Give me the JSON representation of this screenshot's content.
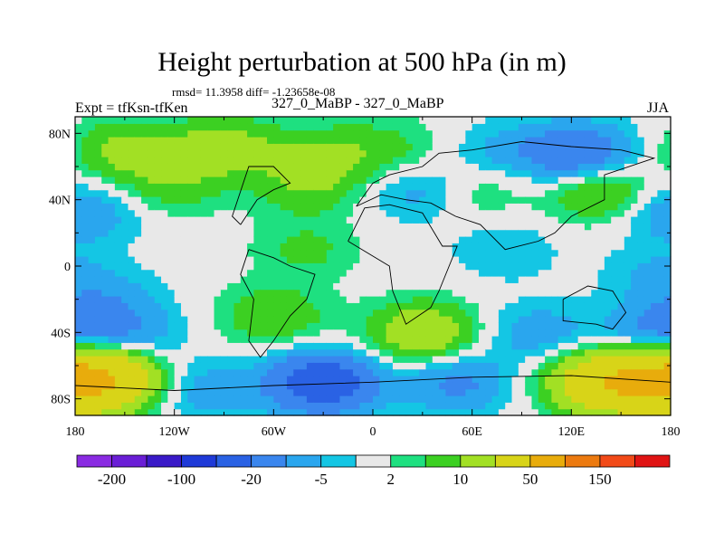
{
  "chart_data": {
    "type": "contour-map",
    "title": "Height perturbation at 500 hPa (in m)",
    "stats_text": "rmsd= 11.3958 diff= -1.23658e-08",
    "left_label": "Expt = tfKsn-tfKen",
    "center_label": "327_0_MaBP - 327_0_MaBP",
    "right_label": "JJA",
    "x_axis": {
      "range": [
        -180,
        180
      ],
      "ticks": [
        {
          "value": -180,
          "label": "180"
        },
        {
          "value": -120,
          "label": "120W"
        },
        {
          "value": -60,
          "label": "60W"
        },
        {
          "value": 0,
          "label": "0"
        },
        {
          "value": 60,
          "label": "60E"
        },
        {
          "value": 120,
          "label": "120E"
        },
        {
          "value": 180,
          "label": "180"
        }
      ]
    },
    "y_axis": {
      "range": [
        -90,
        90
      ],
      "ticks": [
        {
          "value": 80,
          "label": "80N"
        },
        {
          "value": 40,
          "label": "40N"
        },
        {
          "value": 0,
          "label": "0"
        },
        {
          "value": -40,
          "label": "40S"
        },
        {
          "value": -80,
          "label": "80S"
        }
      ]
    },
    "contour_levels": [
      -200,
      -150,
      -100,
      -50,
      -20,
      -10,
      -5,
      -2,
      2,
      5,
      10,
      20,
      50,
      100,
      150,
      200
    ],
    "colorbar": {
      "colors": [
        "#8a2be2",
        "#6a1ed6",
        "#3a1ac8",
        "#1f3ad8",
        "#2a62e4",
        "#3a86ee",
        "#2aa6ee",
        "#14c6e4",
        "#e8e8e8",
        "#1ee080",
        "#3cd022",
        "#a2e024",
        "#d8d418",
        "#e8ac0c",
        "#ec7a10",
        "#f24a18",
        "#e01414"
      ],
      "labels": [
        {
          "after_box": 1,
          "text": "-200"
        },
        {
          "after_box": 3,
          "text": "-100"
        },
        {
          "after_box": 5,
          "text": "-20"
        },
        {
          "after_box": 7,
          "text": "-5"
        },
        {
          "after_box": 9,
          "text": "2"
        },
        {
          "after_box": 11,
          "text": "10"
        },
        {
          "after_box": 13,
          "text": "50"
        },
        {
          "after_box": 15,
          "text": "150"
        }
      ]
    },
    "field": {
      "background_value": 0,
      "anomalies": [
        {
          "lon": -150,
          "lat": 70,
          "value": 12
        },
        {
          "lon": -90,
          "lat": 72,
          "value": 14
        },
        {
          "lon": -30,
          "lat": 66,
          "value": 10
        },
        {
          "lon": 10,
          "lat": 72,
          "value": 6
        },
        {
          "lon": -120,
          "lat": 50,
          "value": 8
        },
        {
          "lon": -40,
          "lat": 48,
          "value": 8
        },
        {
          "lon": 60,
          "lat": 45,
          "value": 6
        },
        {
          "lon": 140,
          "lat": 45,
          "value": 14
        },
        {
          "lon": 125,
          "lat": 68,
          "value": -18
        },
        {
          "lon": 80,
          "lat": 70,
          "value": -6
        },
        {
          "lon": 30,
          "lat": 45,
          "value": -8
        },
        {
          "lon": 170,
          "lat": 38,
          "value": -6
        },
        {
          "lon": -170,
          "lat": 30,
          "value": -6
        },
        {
          "lon": -40,
          "lat": 10,
          "value": 6
        },
        {
          "lon": 80,
          "lat": 10,
          "value": -5
        },
        {
          "lon": 170,
          "lat": -5,
          "value": -5
        },
        {
          "lon": -160,
          "lat": -18,
          "value": -6
        },
        {
          "lon": -150,
          "lat": -40,
          "value": -10
        },
        {
          "lon": -60,
          "lat": -30,
          "value": 10
        },
        {
          "lon": 30,
          "lat": -40,
          "value": 18
        },
        {
          "lon": 100,
          "lat": -40,
          "value": -8
        },
        {
          "lon": 170,
          "lat": -40,
          "value": -12
        },
        {
          "lon": -165,
          "lat": -68,
          "value": 45
        },
        {
          "lon": -100,
          "lat": -75,
          "value": -8
        },
        {
          "lon": -30,
          "lat": -70,
          "value": -30
        },
        {
          "lon": 50,
          "lat": -70,
          "value": -12
        },
        {
          "lon": 140,
          "lat": -70,
          "value": 35
        },
        {
          "lon": 170,
          "lat": -70,
          "value": 30
        }
      ]
    },
    "coastlines": [
      [
        [
          -80,
          25
        ],
        [
          -70,
          40
        ],
        [
          -60,
          46
        ],
        [
          -50,
          50
        ],
        [
          -60,
          60
        ],
        [
          -75,
          60
        ],
        [
          -85,
          30
        ],
        [
          -80,
          25
        ]
      ],
      [
        [
          -75,
          10
        ],
        [
          -60,
          5
        ],
        [
          -50,
          0
        ],
        [
          -35,
          -5
        ],
        [
          -40,
          -20
        ],
        [
          -50,
          -30
        ],
        [
          -60,
          -45
        ],
        [
          -68,
          -55
        ],
        [
          -75,
          -45
        ],
        [
          -72,
          -20
        ],
        [
          -80,
          -5
        ],
        [
          -75,
          10
        ]
      ],
      [
        [
          -15,
          15
        ],
        [
          -5,
          35
        ],
        [
          10,
          37
        ],
        [
          30,
          32
        ],
        [
          42,
          12
        ],
        [
          51,
          12
        ],
        [
          40,
          -15
        ],
        [
          35,
          -25
        ],
        [
          20,
          -35
        ],
        [
          12,
          -15
        ],
        [
          10,
          0
        ],
        [
          -15,
          15
        ]
      ],
      [
        [
          -10,
          36
        ],
        [
          0,
          50
        ],
        [
          10,
          55
        ],
        [
          30,
          60
        ],
        [
          40,
          68
        ],
        [
          60,
          70
        ],
        [
          90,
          75
        ],
        [
          120,
          72
        ],
        [
          150,
          70
        ],
        [
          170,
          65
        ],
        [
          140,
          55
        ],
        [
          140,
          40
        ],
        [
          120,
          30
        ],
        [
          110,
          20
        ],
        [
          100,
          15
        ],
        [
          80,
          10
        ],
        [
          65,
          25
        ],
        [
          50,
          30
        ],
        [
          35,
          38
        ],
        [
          20,
          40
        ],
        [
          5,
          43
        ],
        [
          -10,
          36
        ]
      ],
      [
        [
          115,
          -20
        ],
        [
          130,
          -12
        ],
        [
          145,
          -15
        ],
        [
          153,
          -28
        ],
        [
          145,
          -38
        ],
        [
          135,
          -35
        ],
        [
          115,
          -33
        ],
        [
          115,
          -20
        ]
      ],
      [
        [
          -180,
          -72
        ],
        [
          -120,
          -75
        ],
        [
          -60,
          -72
        ],
        [
          0,
          -70
        ],
        [
          60,
          -67
        ],
        [
          120,
          -66
        ],
        [
          180,
          -70
        ]
      ]
    ]
  }
}
